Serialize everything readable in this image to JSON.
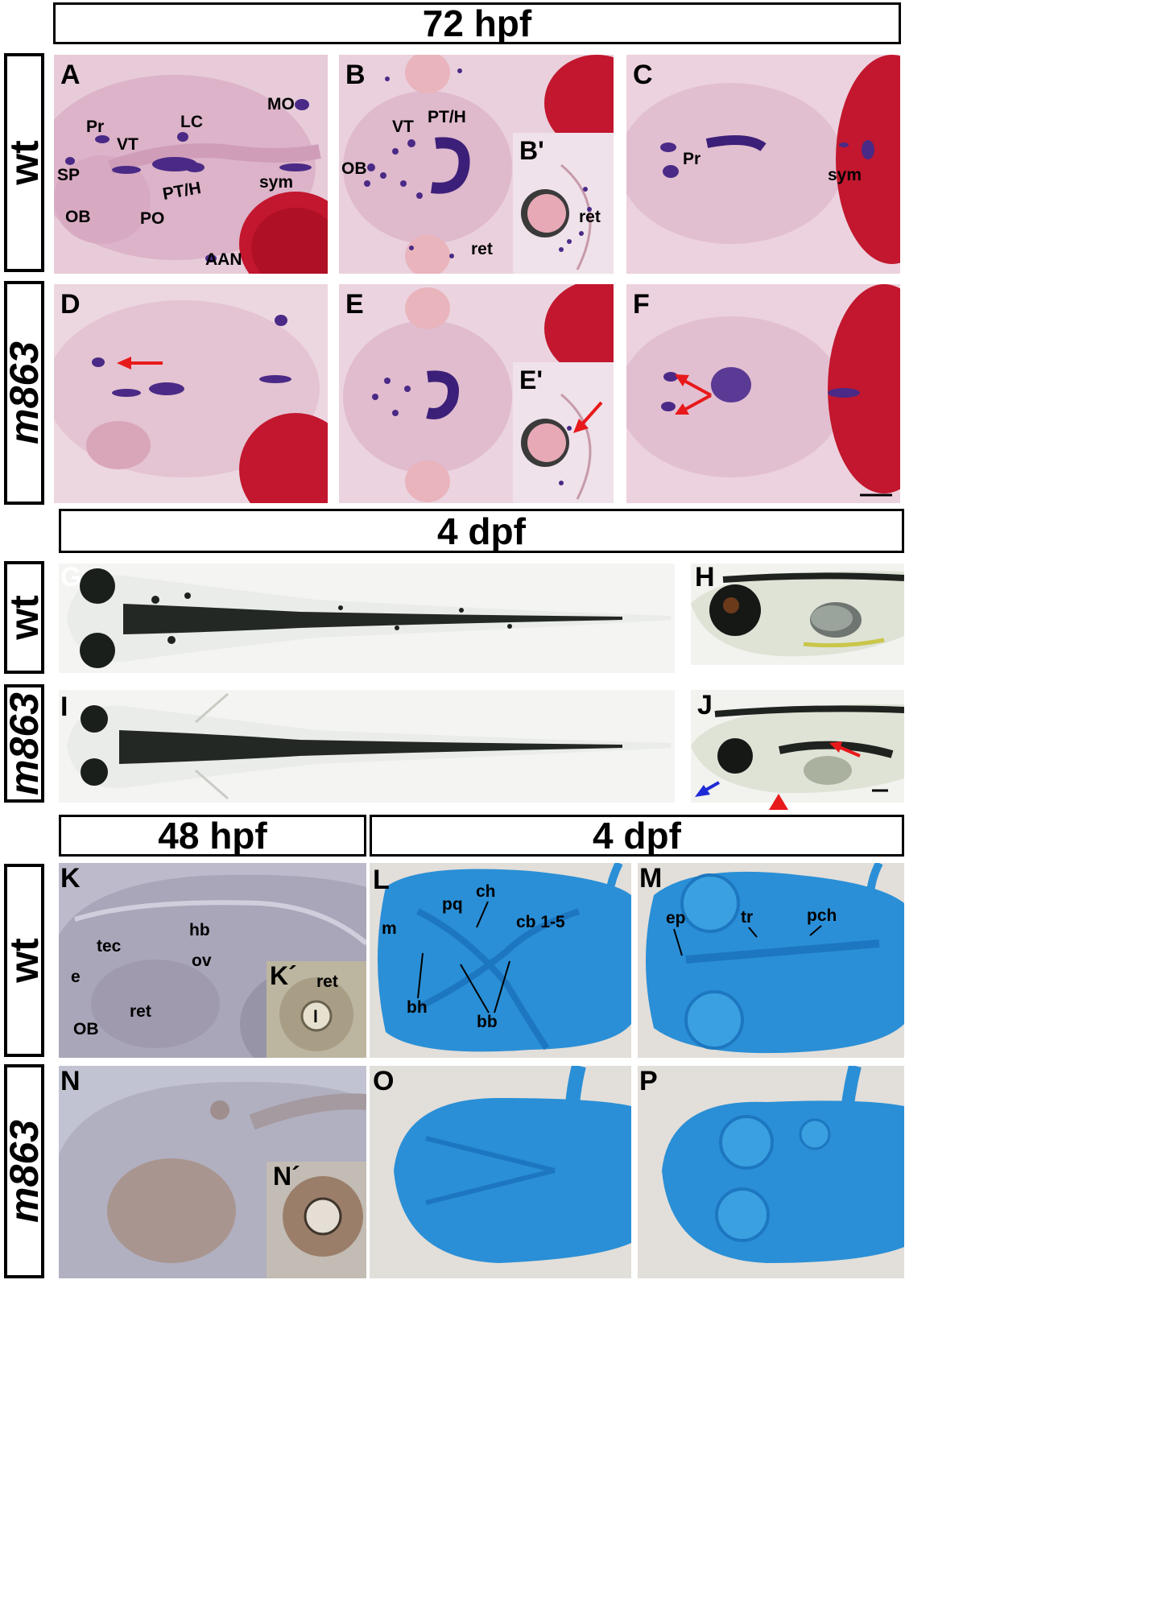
{
  "headers": {
    "h1": "72 hpf",
    "h2": "4 dpf",
    "h3": "48 hpf",
    "h4": "4 dpf"
  },
  "rows": {
    "wt": "wt",
    "mut": "m863"
  },
  "panels": {
    "A": "A",
    "B": "B",
    "B_inset": "B'",
    "C": "C",
    "D": "D",
    "E": "E",
    "E_inset": "E'",
    "F": "F",
    "G": "G",
    "H": "H",
    "I": "I",
    "J": "J",
    "K": "K",
    "K_inset": "K´",
    "L": "L",
    "M": "M",
    "N": "N",
    "N_inset": "N´",
    "O": "O",
    "P": "P"
  },
  "labels": {
    "A": {
      "MO": "MO",
      "LC": "LC",
      "Pr": "Pr",
      "VT": "VT",
      "SP": "SP",
      "PTH": "PT/H",
      "sym": "sym",
      "OB": "OB",
      "PO": "PO",
      "AAN": "AAN"
    },
    "B": {
      "VT": "VT",
      "PTH": "PT/H",
      "OB": "OB",
      "ret": "ret",
      "ret_inset": "ret"
    },
    "C": {
      "Pr": "Pr",
      "sym": "sym"
    },
    "K": {
      "hb": "hb",
      "tec": "tec",
      "ov": "ov",
      "e": "e",
      "ret": "ret",
      "OB": "OB",
      "ret_inset": "ret",
      "l": "l"
    },
    "L": {
      "ch": "ch",
      "pq": "pq",
      "cb": "cb 1-5",
      "m": "m",
      "bh": "bh",
      "bb": "bb"
    },
    "M": {
      "ep": "ep",
      "tr": "tr",
      "pch": "pch"
    }
  },
  "colors": {
    "stain_bg": "#e7c9d6",
    "stain": "#4a2a86",
    "yolk": "#c2172e",
    "alcian": "#2a8fd6",
    "alcian_bg": "#e4e0dc",
    "dic": "#b9b6c8",
    "arrow_red": "#e8191b",
    "arrow_blue": "#1e2ad6"
  }
}
